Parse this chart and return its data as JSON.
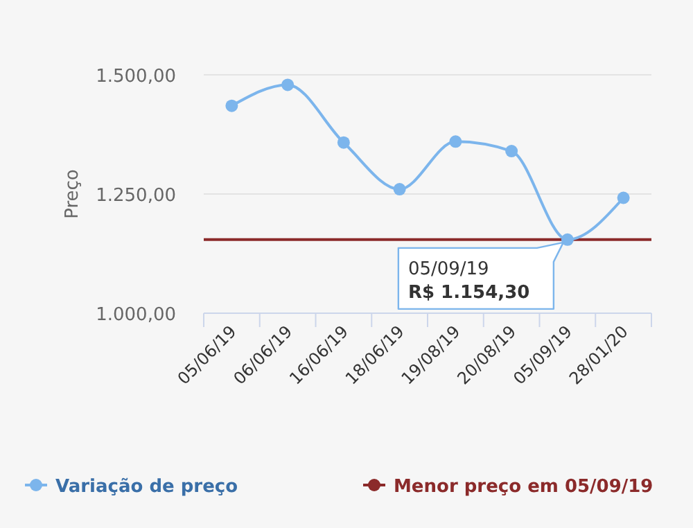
{
  "chart_data": {
    "type": "line",
    "ylabel": "Preço",
    "categories": [
      "05/06/19",
      "06/06/19",
      "16/06/19",
      "18/06/19",
      "19/08/19",
      "20/08/19",
      "05/09/19",
      "28/01/20"
    ],
    "series": [
      {
        "name": "Variação de preço",
        "color": "#7cb5ec",
        "values": [
          1435,
          1479,
          1358,
          1260,
          1360,
          1340,
          1154.3,
          1242
        ]
      }
    ],
    "ylim": [
      1000,
      1500
    ],
    "yticks": [
      {
        "value": 1000,
        "label": "1.000,00"
      },
      {
        "value": 1250,
        "label": "1.250,00"
      },
      {
        "value": 1500,
        "label": "1.500,00"
      }
    ],
    "ref_lines": [
      {
        "axis": "y",
        "value": 1154.3,
        "label": "Menor preço em 05/09/19",
        "color": "#8b2a2a"
      }
    ],
    "annotations": [
      {
        "text": "05/09/19\nR$ 1.154,30",
        "x": "05/09/19",
        "y": 1154.3
      }
    ],
    "grid": "y",
    "legend": "bottom",
    "marker": "circle",
    "line_style": "solid"
  }
}
